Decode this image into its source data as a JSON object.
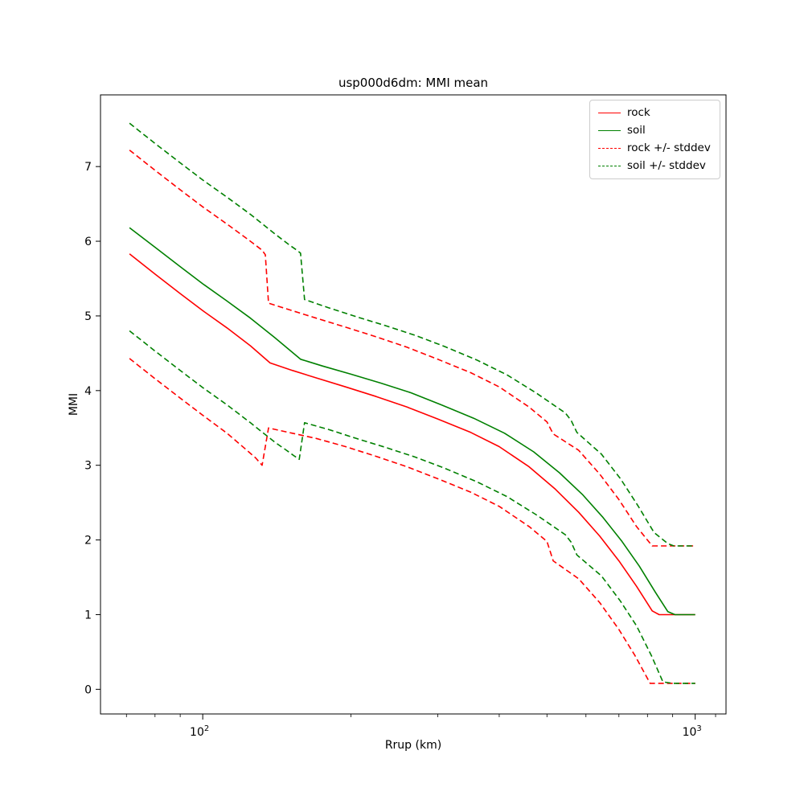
{
  "chart_data": {
    "type": "line",
    "title": "usp000d6dm: MMI mean",
    "xlabel": "Rrup (km)",
    "ylabel": "MMI",
    "x_scale": "log",
    "xlim": [
      62,
      1155
    ],
    "ylim": [
      -0.33,
      7.96
    ],
    "grid": false,
    "legend_position": "upper right",
    "y_ticks": [
      0,
      1,
      2,
      3,
      4,
      5,
      6,
      7
    ],
    "x_major_ticks": [
      {
        "value": 100,
        "base": "10",
        "exp": "2"
      },
      {
        "value": 1000,
        "base": "10",
        "exp": "3"
      }
    ],
    "x_minor_ticks": [
      70,
      80,
      90,
      200,
      300,
      400,
      500,
      600,
      700,
      800,
      900,
      1100
    ],
    "colors": {
      "rock": "#ff0000",
      "soil": "#008000"
    },
    "series": [
      {
        "name": "rock-plus-stddev",
        "color": "#ff0000",
        "style": "dashed",
        "x": [
          71,
          80,
          90,
          100,
          112,
          125,
          132,
          134,
          136,
          152,
          170,
          195,
          225,
          260,
          300,
          350,
          400,
          460,
          500,
          515,
          580,
          640,
          700,
          760,
          818,
          1000
        ],
        "y": [
          7.22,
          6.95,
          6.69,
          6.46,
          6.23,
          6.0,
          5.88,
          5.82,
          5.17,
          5.07,
          4.97,
          4.85,
          4.72,
          4.58,
          4.42,
          4.24,
          4.05,
          3.78,
          3.58,
          3.42,
          3.2,
          2.88,
          2.54,
          2.18,
          1.92,
          1.92
        ]
      },
      {
        "name": "rock-minus-stddev",
        "color": "#ff0000",
        "style": "dashed",
        "x": [
          71,
          80,
          90,
          100,
          112,
          122,
          128,
          132,
          136,
          152,
          170,
          195,
          225,
          260,
          300,
          350,
          400,
          460,
          500,
          515,
          580,
          640,
          700,
          755,
          810,
          1000
        ],
        "y": [
          4.43,
          4.16,
          3.9,
          3.67,
          3.43,
          3.22,
          3.1,
          3.0,
          3.5,
          3.43,
          3.36,
          3.25,
          3.12,
          2.98,
          2.82,
          2.64,
          2.45,
          2.18,
          1.98,
          1.72,
          1.48,
          1.16,
          0.8,
          0.45,
          0.08,
          0.08
        ]
      },
      {
        "name": "rock",
        "color": "#ff0000",
        "style": "solid",
        "x": [
          71,
          80,
          90,
          100,
          112,
          125,
          137,
          152,
          170,
          195,
          225,
          260,
          300,
          350,
          400,
          460,
          520,
          580,
          640,
          700,
          760,
          818,
          845,
          1000
        ],
        "y": [
          5.83,
          5.56,
          5.3,
          5.07,
          4.84,
          4.6,
          4.37,
          4.27,
          4.17,
          4.05,
          3.92,
          3.78,
          3.62,
          3.44,
          3.25,
          2.98,
          2.68,
          2.37,
          2.05,
          1.72,
          1.38,
          1.05,
          1.0,
          1.0
        ]
      },
      {
        "name": "soil-plus-stddev",
        "color": "#008000",
        "style": "dashed",
        "x": [
          71,
          80,
          90,
          100,
          112,
          125,
          140,
          150,
          156,
          158,
          161,
          180,
          205,
          235,
          270,
          310,
          360,
          415,
          475,
          545,
          560,
          575,
          645,
          705,
          765,
          825,
          880,
          905,
          1000
        ],
        "y": [
          7.58,
          7.31,
          7.05,
          6.82,
          6.59,
          6.36,
          6.1,
          5.95,
          5.87,
          5.84,
          5.22,
          5.11,
          4.99,
          4.87,
          4.74,
          4.59,
          4.41,
          4.21,
          3.97,
          3.7,
          3.6,
          3.44,
          3.15,
          2.82,
          2.46,
          2.1,
          1.95,
          1.92,
          1.92
        ]
      },
      {
        "name": "soil-minus-stddev",
        "color": "#008000",
        "style": "dashed",
        "x": [
          71,
          80,
          90,
          100,
          112,
          125,
          140,
          148,
          153,
          157,
          161,
          180,
          205,
          235,
          270,
          310,
          360,
          415,
          475,
          545,
          560,
          575,
          645,
          705,
          760,
          815,
          860,
          900,
          1000
        ],
        "y": [
          4.8,
          4.53,
          4.27,
          4.04,
          3.81,
          3.57,
          3.31,
          3.2,
          3.13,
          3.08,
          3.57,
          3.48,
          3.36,
          3.24,
          3.11,
          2.96,
          2.78,
          2.58,
          2.34,
          2.07,
          1.97,
          1.8,
          1.52,
          1.18,
          0.85,
          0.45,
          0.1,
          0.08,
          0.08
        ]
      },
      {
        "name": "soil",
        "color": "#008000",
        "style": "solid",
        "x": [
          71,
          80,
          90,
          100,
          112,
          125,
          140,
          158,
          175,
          200,
          230,
          265,
          305,
          355,
          410,
          470,
          530,
          590,
          650,
          710,
          770,
          830,
          880,
          910,
          1000
        ],
        "y": [
          6.18,
          5.92,
          5.66,
          5.43,
          5.2,
          4.97,
          4.71,
          4.42,
          4.33,
          4.22,
          4.1,
          3.97,
          3.81,
          3.63,
          3.43,
          3.18,
          2.9,
          2.61,
          2.3,
          1.98,
          1.65,
          1.3,
          1.04,
          1.0,
          1.0
        ]
      }
    ],
    "legend": [
      {
        "label": "rock",
        "color": "#ff0000",
        "style": "solid"
      },
      {
        "label": "soil",
        "color": "#008000",
        "style": "solid"
      },
      {
        "label": "rock +/- stddev",
        "color": "#ff0000",
        "style": "dashed"
      },
      {
        "label": "soil +/- stddev",
        "color": "#008000",
        "style": "dashed"
      }
    ]
  }
}
